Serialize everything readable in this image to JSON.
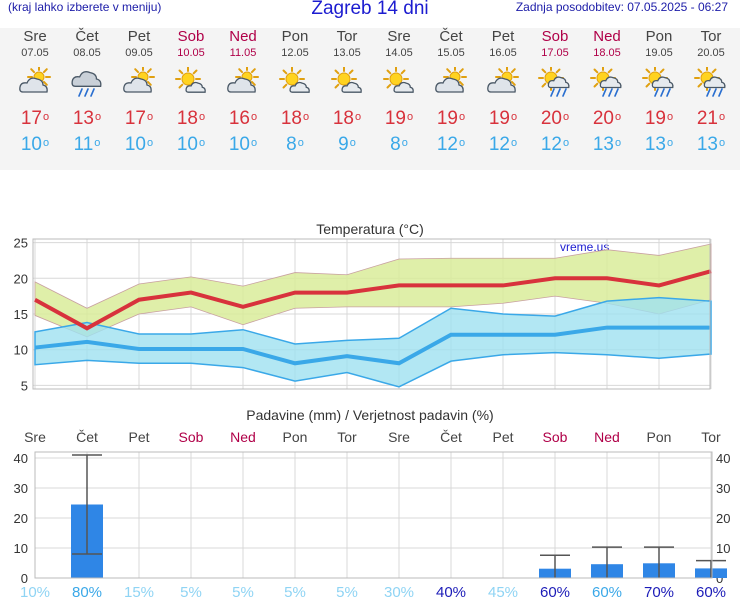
{
  "header": {
    "left": "(kraj lahko izberete v meniju)",
    "title": "Zagreb 14 dni",
    "right": "Zadnja posodobitev: 07.05.2025 - 06:27"
  },
  "colors": {
    "max_temp": "#d8323c",
    "min_temp": "#3aa8e8",
    "weekend": "#b00048",
    "precip_bar": "#2f86e6",
    "max_band": "#d9ec9a",
    "min_band": "#9fe1f0"
  },
  "days": [
    {
      "name": "Sre",
      "date": "07.05",
      "icon": "partly-cloudy",
      "tmax": "17",
      "tmin": "10",
      "weekend": false
    },
    {
      "name": "Čet",
      "date": "08.05",
      "icon": "cloud-rain",
      "tmax": "13",
      "tmin": "11",
      "weekend": false
    },
    {
      "name": "Pet",
      "date": "09.05",
      "icon": "partly-cloudy",
      "tmax": "17",
      "tmin": "10",
      "weekend": false
    },
    {
      "name": "Sob",
      "date": "10.05",
      "icon": "sun-cloud",
      "tmax": "18",
      "tmin": "10",
      "weekend": true
    },
    {
      "name": "Ned",
      "date": "11.05",
      "icon": "partly-cloudy",
      "tmax": "16",
      "tmin": "10",
      "weekend": true
    },
    {
      "name": "Pon",
      "date": "12.05",
      "icon": "sun-cloud",
      "tmax": "18",
      "tmin": "8",
      "weekend": false
    },
    {
      "name": "Tor",
      "date": "13.05",
      "icon": "sun-cloud",
      "tmax": "18",
      "tmin": "9",
      "weekend": false
    },
    {
      "name": "Sre",
      "date": "14.05",
      "icon": "sun-cloud",
      "tmax": "19",
      "tmin": "8",
      "weekend": false
    },
    {
      "name": "Čet",
      "date": "15.05",
      "icon": "partly-cloudy",
      "tmax": "19",
      "tmin": "12",
      "weekend": false
    },
    {
      "name": "Pet",
      "date": "16.05",
      "icon": "partly-cloudy",
      "tmax": "19",
      "tmin": "12",
      "weekend": false
    },
    {
      "name": "Sob",
      "date": "17.05",
      "icon": "sun-cloud-rain",
      "tmax": "20",
      "tmin": "12",
      "weekend": true
    },
    {
      "name": "Ned",
      "date": "18.05",
      "icon": "sun-cloud-rain",
      "tmax": "20",
      "tmin": "13",
      "weekend": true
    },
    {
      "name": "Pon",
      "date": "19.05",
      "icon": "sun-cloud-rain",
      "tmax": "19",
      "tmin": "13",
      "weekend": false
    },
    {
      "name": "Tor",
      "date": "20.05",
      "icon": "sun-cloud-rain",
      "tmax": "21",
      "tmin": "13",
      "weekend": false
    }
  ],
  "chart_data": [
    {
      "type": "line",
      "title": "Temperatura (°C)",
      "watermark": "vreme.us",
      "ylim": [
        4.5,
        25.5
      ],
      "yticks": [
        "5",
        "10",
        "15",
        "20",
        "25"
      ],
      "x": [
        0,
        1,
        2,
        3,
        4,
        5,
        6,
        7,
        8,
        9,
        10,
        11,
        12,
        13
      ],
      "grid": true,
      "series": [
        {
          "role": "max",
          "values": [
            17,
            13,
            17,
            18,
            16,
            18,
            18,
            19,
            19,
            19,
            20,
            20,
            19,
            21
          ]
        },
        {
          "role": "max-band-upper",
          "values": [
            19.5,
            15.8,
            19.2,
            20.2,
            18.9,
            20.8,
            20.5,
            22.7,
            22.8,
            22.8,
            22.8,
            24,
            23.2,
            24.8
          ]
        },
        {
          "role": "max-band-lower",
          "values": [
            14.8,
            11.8,
            15.0,
            16.0,
            13.5,
            15.8,
            16.0,
            16.0,
            16.0,
            16.5,
            17.5,
            16.5,
            15.0,
            17.0
          ]
        },
        {
          "role": "min",
          "values": [
            10.3,
            11.1,
            10.1,
            10.1,
            10.1,
            8.1,
            9.1,
            8.1,
            12.1,
            12.1,
            12.1,
            13.1,
            13.1,
            13.1
          ]
        },
        {
          "role": "min-band-upper",
          "values": [
            12.5,
            13.8,
            12.2,
            12.2,
            12.8,
            10.8,
            11.3,
            11.6,
            15.8,
            15.0,
            14.7,
            16.8,
            17.3,
            16.8
          ]
        },
        {
          "role": "min-band-lower",
          "values": [
            7.9,
            8.5,
            8.1,
            8.1,
            7.5,
            5.6,
            6.8,
            4.8,
            8.4,
            9.3,
            9.6,
            9.3,
            8.8,
            9.4
          ]
        }
      ]
    },
    {
      "type": "bar",
      "title": "Padavine (mm) / Verjetnost padavin (%)",
      "categories": [
        "Sre",
        "Čet",
        "Pet",
        "Sob",
        "Ned",
        "Pon",
        "Tor",
        "Sre",
        "Čet",
        "Pet",
        "Sob",
        "Ned",
        "Pon",
        "Tor"
      ],
      "weekend": [
        false,
        false,
        false,
        true,
        true,
        false,
        false,
        false,
        false,
        false,
        true,
        true,
        false,
        false
      ],
      "ylim": [
        0,
        42
      ],
      "yticks": [
        "0",
        "10",
        "20",
        "30",
        "40"
      ],
      "values": [
        0,
        24.5,
        0,
        0,
        0,
        0,
        0,
        0,
        0,
        0,
        3.1,
        4.6,
        4.9,
        3.2
      ],
      "range_low": [
        null,
        8,
        null,
        null,
        null,
        null,
        null,
        null,
        null,
        null,
        0,
        0,
        0,
        0
      ],
      "range_high": [
        null,
        41,
        null,
        null,
        null,
        null,
        null,
        null,
        null,
        null,
        7.6,
        10.3,
        10.3,
        5.8
      ],
      "probability": [
        "10%",
        "80%",
        "15%",
        "5%",
        "5%",
        "5%",
        "5%",
        "30%",
        "40%",
        "45%",
        "60%",
        "60%",
        "70%",
        "60%"
      ],
      "probability_strength": [
        0,
        2,
        0,
        0,
        0,
        0,
        0,
        0,
        1,
        0,
        1,
        2,
        1,
        1
      ]
    }
  ]
}
